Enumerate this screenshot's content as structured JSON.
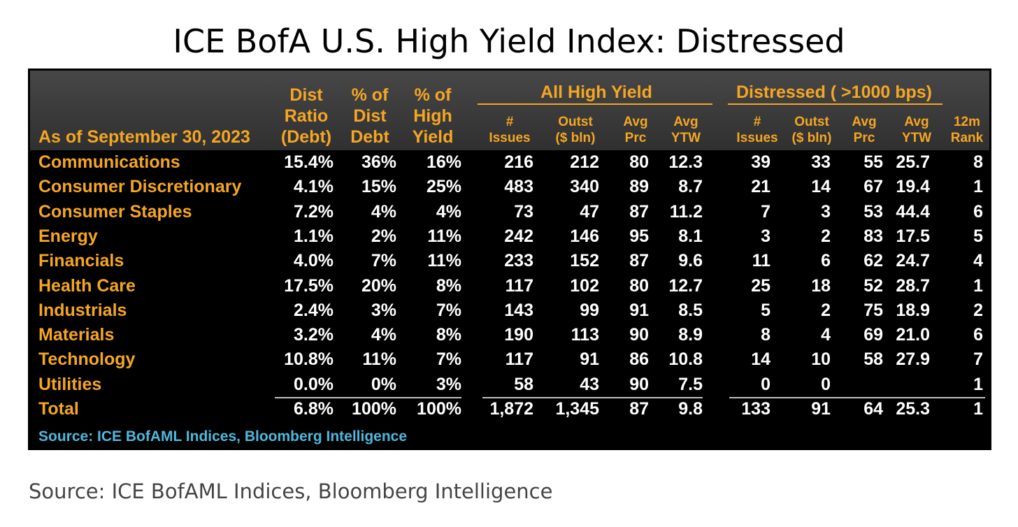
{
  "title": "ICE BofA U.S. High Yield Index: Distressed",
  "source_caption": "Source: ICE BofAML Indices, Bloomberg Intelligence",
  "chart_data": {
    "type": "table",
    "as_of_label": "As of September 30, 2023",
    "groups": [
      "All High Yield",
      "Distressed ( >1000 bps)"
    ],
    "columns": [
      {
        "lines": [
          "Dist",
          "Ratio",
          "(Debt)"
        ]
      },
      {
        "lines": [
          "% of",
          "Dist",
          "Debt"
        ]
      },
      {
        "lines": [
          "% of",
          "High",
          "Yield"
        ]
      },
      {
        "lines": [
          "#",
          "Issues"
        ]
      },
      {
        "lines": [
          "Outst",
          "($ bln)"
        ]
      },
      {
        "lines": [
          "Avg",
          "Prc"
        ]
      },
      {
        "lines": [
          "Avg",
          "YTW"
        ]
      },
      {
        "lines": [
          "#",
          "Issues"
        ]
      },
      {
        "lines": [
          "Outst",
          "($ bln)"
        ]
      },
      {
        "lines": [
          "Avg",
          "Prc"
        ]
      },
      {
        "lines": [
          "Avg",
          "YTW"
        ]
      },
      {
        "lines": [
          "12m",
          "Rank"
        ]
      }
    ],
    "rows": [
      {
        "sector": "Communications",
        "values": [
          "15.4%",
          "36%",
          "16%",
          "216",
          "212",
          "80",
          "12.3",
          "39",
          "33",
          "55",
          "25.7",
          "8"
        ]
      },
      {
        "sector": "Consumer Discretionary",
        "values": [
          "4.1%",
          "15%",
          "25%",
          "483",
          "340",
          "89",
          "8.7",
          "21",
          "14",
          "67",
          "19.4",
          "1"
        ]
      },
      {
        "sector": "Consumer Staples",
        "values": [
          "7.2%",
          "4%",
          "4%",
          "73",
          "47",
          "87",
          "11.2",
          "7",
          "3",
          "53",
          "44.4",
          "6"
        ]
      },
      {
        "sector": "Energy",
        "values": [
          "1.1%",
          "2%",
          "11%",
          "242",
          "146",
          "95",
          "8.1",
          "3",
          "2",
          "83",
          "17.5",
          "5"
        ]
      },
      {
        "sector": "Financials",
        "values": [
          "4.0%",
          "7%",
          "11%",
          "233",
          "152",
          "87",
          "9.6",
          "11",
          "6",
          "62",
          "24.7",
          "4"
        ]
      },
      {
        "sector": "Health Care",
        "values": [
          "17.5%",
          "20%",
          "8%",
          "117",
          "102",
          "80",
          "12.7",
          "25",
          "18",
          "52",
          "28.7",
          "1"
        ]
      },
      {
        "sector": "Industrials",
        "values": [
          "2.4%",
          "3%",
          "7%",
          "143",
          "99",
          "91",
          "8.5",
          "5",
          "2",
          "75",
          "18.9",
          "2"
        ]
      },
      {
        "sector": "Materials",
        "values": [
          "3.2%",
          "4%",
          "8%",
          "190",
          "113",
          "90",
          "8.9",
          "8",
          "4",
          "69",
          "21.0",
          "6"
        ]
      },
      {
        "sector": "Technology",
        "values": [
          "10.8%",
          "11%",
          "7%",
          "117",
          "91",
          "86",
          "10.8",
          "14",
          "10",
          "58",
          "27.9",
          "7"
        ]
      },
      {
        "sector": "Utilities",
        "values": [
          "0.0%",
          "0%",
          "3%",
          "58",
          "43",
          "90",
          "7.5",
          "0",
          "0",
          "",
          "",
          "1"
        ]
      },
      {
        "sector": "Total",
        "values": [
          "6.8%",
          "100%",
          "100%",
          "1,872",
          "1,345",
          "87",
          "9.8",
          "133",
          "91",
          "64",
          "25.3",
          "1"
        ]
      }
    ],
    "source": "Source: ICE BofAML Indices, Bloomberg Intelligence",
    "colors": {
      "header_text": "#f5a623",
      "value_text": "#ffffff",
      "source_text": "#4fb8dc",
      "background": "#000000"
    }
  }
}
